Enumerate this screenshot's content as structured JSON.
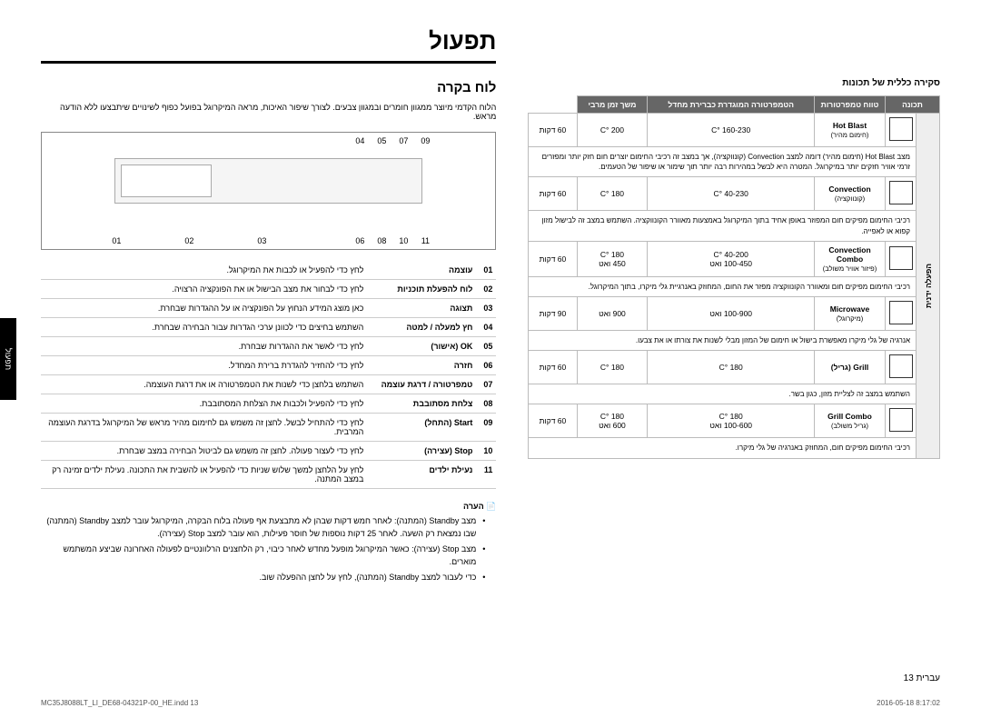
{
  "title": "תפעול",
  "section": "לוח בקרה",
  "intro": "הלוח הקדמי מיוצר ממגוון חומרים ובמגוון צבעים. לצורך שיפור האיכות, מראה המיקרוגל בפועל כפוף לשינויים שיתבצעו ללא הודעה מראש.",
  "callouts_top": [
    "09",
    "07",
    "05",
    "04"
  ],
  "callouts_bot": [
    "11",
    "10",
    "08",
    "06",
    "03",
    "02",
    "01"
  ],
  "desc_rows": [
    {
      "n": "01",
      "lbl": "עוצמה",
      "txt": "לחץ כדי להפעיל או לכבות את המיקרוגל."
    },
    {
      "n": "02",
      "lbl": "לוח להפעלת תוכניות",
      "txt": "לחץ כדי לבחור את מצב הבישול או את הפונקציה הרצויה."
    },
    {
      "n": "03",
      "lbl": "תצוגה",
      "txt": "כאן מוצג המידע הנחוץ על הפונקציה או על ההגדרות שבחרת."
    },
    {
      "n": "04",
      "lbl": "חץ למעלה / למטה",
      "txt": "השתמש בחיצים כדי לכוונן ערכי הגדרות עבור הבחירה שבחרת."
    },
    {
      "n": "05",
      "lbl": "OK (אישור)",
      "txt": "לחץ כדי לאשר את ההגדרות שבחרת."
    },
    {
      "n": "06",
      "lbl": "חזרה",
      "txt": "לחץ כדי להחזיר להגדרת ברירת המחדל."
    },
    {
      "n": "07",
      "lbl": "טמפרטורה / דרגת עוצמה",
      "txt": "השתמש בלחצן כדי לשנות את הטמפרטורה או את דרגת העוצמה."
    },
    {
      "n": "08",
      "lbl": "צלחת מסתובבת",
      "txt": "לחץ כדי להפעיל ולכבות את הצלחת המסתובבת."
    },
    {
      "n": "09",
      "lbl": "Start (התחל)",
      "txt": "לחץ כדי להתחיל לבשל. לחצן זה משמש גם לחימום מהיר מראש של המיקרוגל בדרגת העוצמה המרבית."
    },
    {
      "n": "10",
      "lbl": "Stop (עצירה)",
      "txt": "לחץ כדי לעצור פעולה. לחצן זה משמש גם לביטול הבחירה במצב שבחרת."
    },
    {
      "n": "11",
      "lbl": "נעילת ילדים",
      "txt": "לחץ על הלחצן למשך שלוש שניות כדי להפעיל או להשבית את התכונה. נעילת ילדים זמינה רק במצב המתנה."
    }
  ],
  "note_title": "הערה",
  "notes": [
    "מצב Standby (המתנה): לאחר חמש דקות שבהן לא מתבצעת אף פעולה בלוח הבקרה, המיקרוגל עובר למצב Standby (המתנה) שבו נמצאת רק השעה. לאחר 25 דקות נוספות של חוסר פעילות, הוא עובר למצב Stop (עצירה).",
    "מצב Stop (עצירה): כאשר המיקרוגל מופעל מחדש לאחר כיבוי, רק הלחצנים הרלוונטיים לפעולה האחרונה שביצע המשתמש מוארים.",
    "כדי לעבור למצב Standby (המתנה), לחץ על לחצן ההפעלה שוב."
  ],
  "overview_title": "סקירה כללית של תכונות",
  "vcat_label": "הפעלה ידנית",
  "modes_headers": [
    "תכונה",
    "טווח טמפרטורות",
    "הטמפרטורה המוגדרת כברירת מחדל",
    "משך זמן מרבי"
  ],
  "modes": [
    {
      "name": "Hot Blast",
      "sub": "(חימום מהיר)",
      "r": "160-230 °C",
      "d": "200 °C",
      "t": "60 דקות",
      "desc": "מצב Hot Blast (חימום מהיר) דומה למצב Convection (קונווקציה), אך במצב זה רכיבי החימום יוצרים חום חזק יותר ומפזרים זרמי אוויר חזקים יותר במיקרוגל. המטרה היא לבשל במהירות רבה יותר תוך שימור או שיפור של הטעמים."
    },
    {
      "name": "Convection",
      "sub": "(קונווקציה)",
      "r": "40-230 °C",
      "d": "180 °C",
      "t": "60 דקות",
      "desc": "רכיבי החימום מפיקים חום המפוזר באופן אחיד בתוך המיקרוגל באמצעות מאוורר הקונווקציה. השתמש במצב זה לבישול מזון קפוא או לאפייה."
    },
    {
      "name": "Convection Combo",
      "sub": "(פיזור אוויר משולב)",
      "r": "40-200 °C\n100-450 ואט",
      "d": "180 °C\n450 ואט",
      "t": "60 דקות",
      "desc": "רכיבי החימום מפיקים חום ומאוורר הקונווקציה מפזר את החום, המחוזק באנרגיית גלי מיקרו, בתוך המיקרוגל."
    },
    {
      "name": "Microwave",
      "sub": "(מיקרוגל)",
      "r": "100-900 ואט",
      "d": "900 ואט",
      "t": "90 דקות",
      "desc": "אנרגיה של גלי מיקרו מאפשרת בישול או חימום של המזון מבלי לשנות את צורתו או את צבעו."
    },
    {
      "name": "Grill (גריל)",
      "sub": "",
      "r": "180 °C",
      "d": "180 °C",
      "t": "60 דקות",
      "desc": "השתמש במצב זה לצליית מזון, כגון בשר."
    },
    {
      "name": "Grill Combo",
      "sub": "(גריל משולב)",
      "r": "180 °C\n100-600 ואט",
      "d": "180 °C\n600 ואט",
      "t": "60 דקות",
      "desc": "רכיבי החימום מפיקים חום, המחוזק באנרגיה של גלי מיקרו."
    }
  ],
  "page_foot": "עברית   13",
  "sidebar": "תפעול",
  "foot_left": "MC35J8088LT_LI_DE68-04321P-00_HE.indd   13",
  "foot_right": "2016-05-18   8:17:02"
}
